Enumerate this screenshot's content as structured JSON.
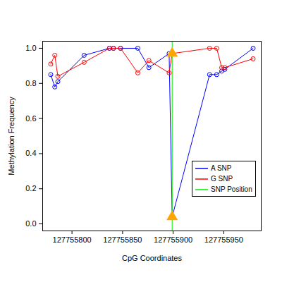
{
  "chart_data": {
    "type": "line",
    "x_label": "CpG Coordinates",
    "y_label": "Methylation Frequency",
    "x": [
      127755779,
      127755783,
      127755786,
      127755812,
      127755837,
      127755841,
      127755848,
      127755865,
      127755876,
      127755896,
      127755936,
      127755943,
      127755948,
      127755951,
      127755979
    ],
    "series": [
      {
        "name": "A SNP",
        "color": "#0000ff",
        "marker": "circle",
        "snp_value": 0.04,
        "values": [
          0.85,
          0.78,
          0.81,
          0.96,
          1.0,
          1.0,
          1.0,
          1.0,
          0.89,
          0.97,
          0.85,
          0.85,
          0.87,
          0.88,
          1.0
        ]
      },
      {
        "name": "G SNP",
        "color": "#ff0000",
        "marker": "circle",
        "snp_value": 0.97,
        "values": [
          0.91,
          0.96,
          0.84,
          0.92,
          1.0,
          1.0,
          1.0,
          0.86,
          0.93,
          0.86,
          1.0,
          1.0,
          0.89,
          0.89,
          0.94
        ]
      }
    ],
    "snp": {
      "name": "SNP Position",
      "color": "#00ee00",
      "x": 127755899,
      "marker": "triangle",
      "marker_color": "orange"
    },
    "xlim": [
      127755771,
      127755987
    ],
    "xticks": [
      127755800,
      127755850,
      127755900,
      127755950
    ],
    "ylim": [
      -0.04,
      1.04
    ],
    "yticks": [
      {
        "value": 0,
        "label": "0.0"
      },
      0.2,
      0.4,
      0.6,
      0.8,
      {
        "value": 1,
        "label": "1.0"
      }
    ],
    "legend": "right",
    "grid": false
  }
}
